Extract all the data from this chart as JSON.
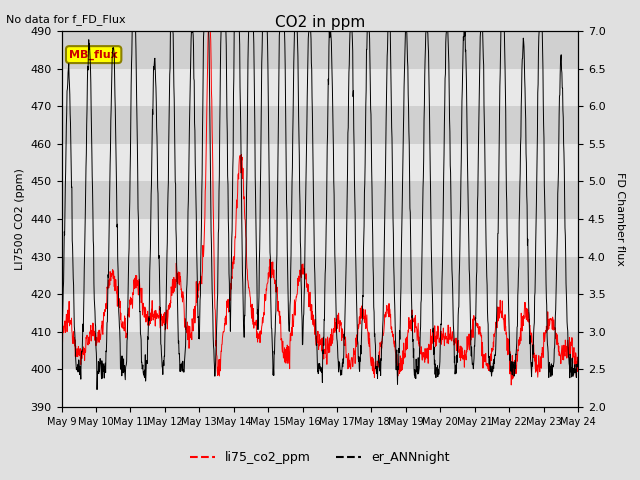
{
  "title": "CO2 in ppm",
  "subtitle": "No data for f_FD_Flux",
  "ylabel_left": "LI7500 CO2 (ppm)",
  "ylabel_right": "FD Chamber flux",
  "ylim_left": [
    390,
    490
  ],
  "ylim_right": [
    2.0,
    7.0
  ],
  "yticks_left": [
    390,
    400,
    410,
    420,
    430,
    440,
    450,
    460,
    470,
    480,
    490
  ],
  "yticks_right": [
    2.0,
    2.5,
    3.0,
    3.5,
    4.0,
    4.5,
    5.0,
    5.5,
    6.0,
    6.5,
    7.0
  ],
  "xticklabels": [
    "May 9",
    "May 10",
    "May 11",
    "May 12",
    "May 13",
    "May 14",
    "May 15",
    "May 16",
    "May 17",
    "May 18",
    "May 19",
    "May 20",
    "May 21",
    "May 22",
    "May 23",
    "May 24"
  ],
  "legend_entries": [
    "li75_co2_ppm",
    "er_ANNnight"
  ],
  "line_colors": [
    "#ff0000",
    "#000000"
  ],
  "legend_box_facecolor": "#ffff00",
  "legend_box_edge": "#8B8000",
  "annotation_text": "MB_flux",
  "fig_bg_color": "#e0e0e0",
  "band_light": "#e8e8e8",
  "band_dark": "#d0d0d0",
  "grid_line_color": "#c0c0c0"
}
